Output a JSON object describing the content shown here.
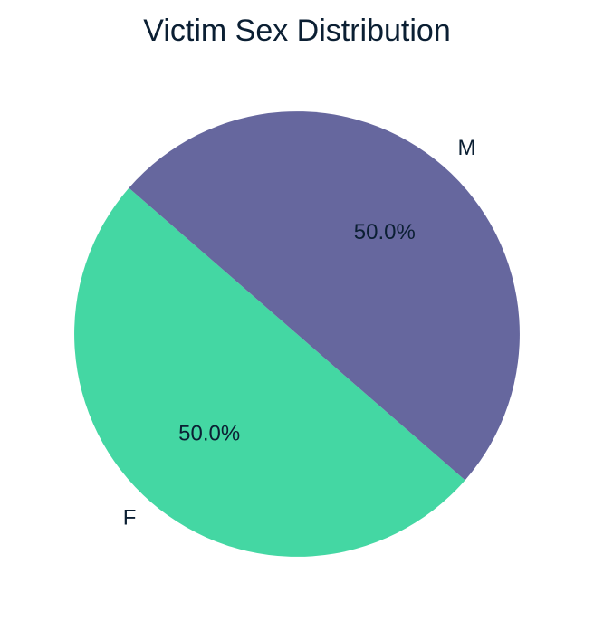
{
  "chart_data": {
    "type": "pie",
    "title": "Victim Sex Distribution",
    "slices": [
      {
        "label": "F",
        "value": 50.0,
        "pct_label": "50.0%",
        "color": "#44d7a3"
      },
      {
        "label": "M",
        "value": 50.0,
        "pct_label": "50.0%",
        "color": "#66679e"
      }
    ],
    "start_angle_deg": 139,
    "direction": "counterclockwise"
  }
}
